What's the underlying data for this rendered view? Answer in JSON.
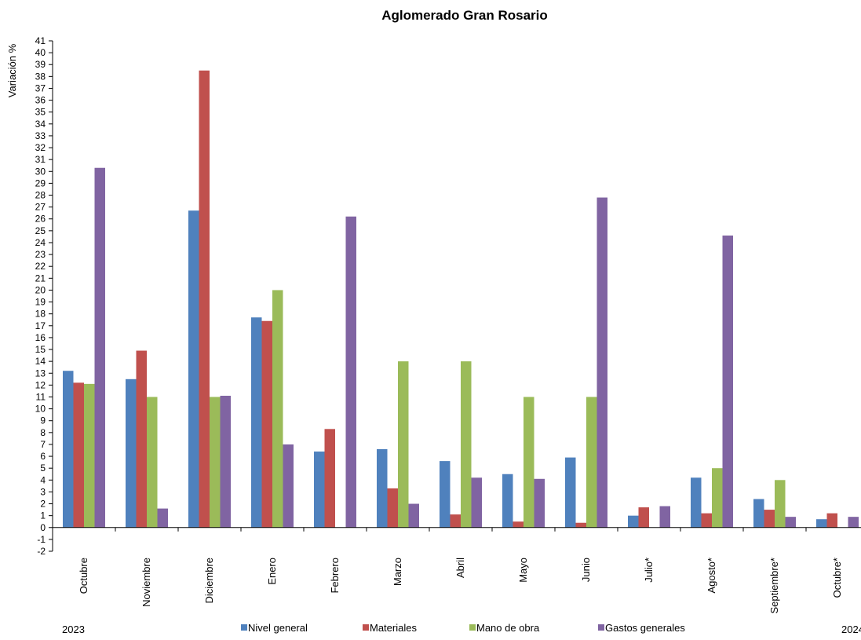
{
  "chart_data": {
    "type": "bar",
    "title": "Aglomerado Gran Rosario",
    "ylabel": "Variación  %",
    "xlabel": "",
    "ylim": [
      -2,
      41
    ],
    "ytick_step": 1,
    "grid": false,
    "legend_position": "bottom",
    "year_labels": [
      "2023",
      "2024"
    ],
    "categories": [
      "Octubre",
      "Noviembre",
      "Diciembre",
      "Enero",
      "Febrero",
      "Marzo",
      "Abril",
      "Mayo",
      "Junio",
      "Julio*",
      "Agosto*",
      "Septiembre*",
      "Octubre*"
    ],
    "series": [
      {
        "name": "Nivel general",
        "color": "#4F81BD",
        "values": [
          13.2,
          12.5,
          26.7,
          17.7,
          6.4,
          6.6,
          5.6,
          4.5,
          5.9,
          1.0,
          4.2,
          2.4,
          0.7
        ]
      },
      {
        "name": "Materiales",
        "color": "#C0504D",
        "values": [
          12.2,
          14.9,
          38.5,
          17.4,
          8.3,
          3.3,
          1.1,
          0.5,
          0.4,
          1.7,
          1.2,
          1.5,
          1.2
        ]
      },
      {
        "name": "Mano de obra",
        "color": "#9BBB59",
        "values": [
          12.1,
          11.0,
          11.0,
          20.0,
          0.0,
          14.0,
          14.0,
          11.0,
          11.0,
          0.0,
          5.0,
          4.0,
          0.0
        ]
      },
      {
        "name": "Gastos generales",
        "color": "#8064A2",
        "values": [
          30.3,
          1.6,
          11.1,
          7.0,
          26.2,
          2.0,
          4.2,
          4.1,
          27.8,
          1.8,
          24.6,
          0.9,
          0.9
        ]
      }
    ]
  }
}
